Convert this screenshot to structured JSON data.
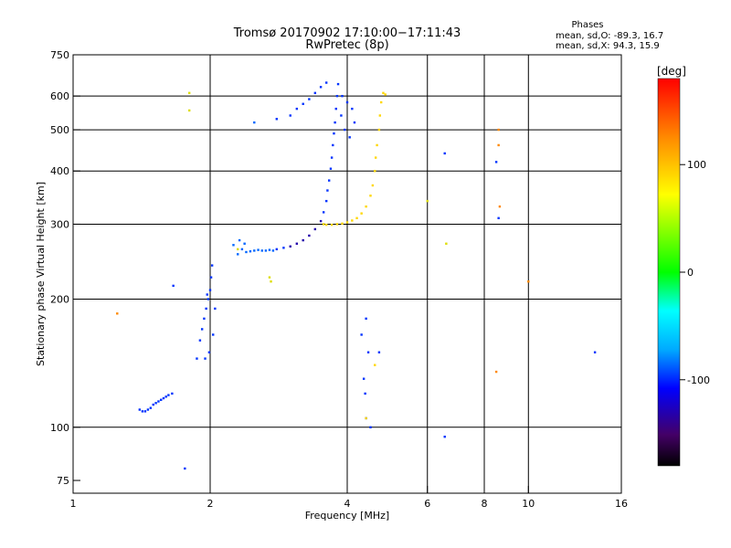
{
  "chart_data": {
    "type": "scatter",
    "title": "Tromsø 20170902 17:10:00−17:11:43",
    "subtitle": "RwPretec (8p)",
    "xlabel": "Frequency [MHz]",
    "ylabel": "Stationary phase Virtual Height [km]",
    "x_scale": "log2",
    "y_scale": "log",
    "xlim": [
      1,
      16
    ],
    "ylim": [
      70,
      750
    ],
    "x_ticks": [
      1,
      2,
      4,
      6,
      8,
      10,
      16
    ],
    "y_ticks": [
      75,
      100,
      200,
      300,
      400,
      500,
      600,
      750
    ],
    "x_grid": [
      2,
      4,
      6,
      8,
      10
    ],
    "y_grid": [
      100,
      200,
      300,
      400,
      500,
      600
    ],
    "stats": {
      "title": "Phases",
      "line1": "mean, sd,O: -89.3, 16.7",
      "line2": "mean, sd,X:  94.3, 15.9"
    },
    "colorbar": {
      "label": "[deg]",
      "range": [
        -180,
        180
      ],
      "ticks": [
        100,
        0,
        -100
      ]
    },
    "series": [
      {
        "name": "O",
        "points": [
          [
            1.4,
            110
          ],
          [
            1.42,
            109
          ],
          [
            1.44,
            109
          ],
          [
            1.46,
            110
          ],
          [
            1.48,
            111
          ],
          [
            1.5,
            113
          ],
          [
            1.52,
            114
          ],
          [
            1.54,
            115
          ],
          [
            1.56,
            116
          ],
          [
            1.58,
            117
          ],
          [
            1.6,
            118
          ],
          [
            1.62,
            119
          ],
          [
            1.65,
            120
          ],
          [
            1.76,
            80
          ],
          [
            1.66,
            215
          ],
          [
            1.87,
            145
          ],
          [
            1.9,
            160
          ],
          [
            1.92,
            170
          ],
          [
            1.94,
            180
          ],
          [
            1.96,
            190
          ],
          [
            1.98,
            200
          ],
          [
            2.0,
            210
          ],
          [
            2.01,
            225
          ],
          [
            2.02,
            240
          ],
          [
            1.99,
            150
          ],
          [
            2.03,
            165
          ],
          [
            2.05,
            190
          ],
          [
            1.95,
            145
          ],
          [
            1.97,
            205
          ],
          [
            2.3,
            255
          ],
          [
            2.35,
            262
          ],
          [
            2.4,
            258
          ],
          [
            2.45,
            259
          ],
          [
            2.5,
            260
          ],
          [
            2.55,
            261
          ],
          [
            2.6,
            260
          ],
          [
            2.65,
            260
          ],
          [
            2.7,
            261
          ],
          [
            2.75,
            260
          ],
          [
            2.32,
            275
          ],
          [
            2.38,
            270
          ],
          [
            2.25,
            268
          ],
          [
            2.8,
            262
          ],
          [
            2.9,
            264
          ],
          [
            3.0,
            266
          ],
          [
            3.1,
            270
          ],
          [
            3.2,
            275
          ],
          [
            3.3,
            282
          ],
          [
            3.4,
            292
          ],
          [
            3.5,
            305
          ],
          [
            3.55,
            320
          ],
          [
            3.6,
            340
          ],
          [
            3.62,
            360
          ],
          [
            3.65,
            380
          ],
          [
            3.68,
            405
          ],
          [
            3.7,
            430
          ],
          [
            3.72,
            460
          ],
          [
            3.74,
            490
          ],
          [
            3.76,
            520
          ],
          [
            3.78,
            560
          ],
          [
            3.8,
            600
          ],
          [
            3.82,
            640
          ],
          [
            3.9,
            600
          ],
          [
            4.0,
            580
          ],
          [
            4.1,
            560
          ],
          [
            3.95,
            500
          ],
          [
            4.05,
            480
          ],
          [
            4.15,
            520
          ],
          [
            3.88,
            540
          ],
          [
            3.0,
            540
          ],
          [
            3.1,
            560
          ],
          [
            3.2,
            575
          ],
          [
            3.3,
            590
          ],
          [
            3.4,
            610
          ],
          [
            3.5,
            630
          ],
          [
            3.6,
            645
          ],
          [
            2.8,
            530
          ],
          [
            2.5,
            520
          ],
          [
            4.4,
            180
          ],
          [
            4.45,
            150
          ],
          [
            4.3,
            165
          ],
          [
            4.35,
            130
          ],
          [
            4.38,
            120
          ],
          [
            4.4,
            105
          ],
          [
            4.5,
            100
          ],
          [
            4.7,
            150
          ],
          [
            6.55,
            95
          ],
          [
            6.55,
            440
          ],
          [
            8.5,
            420
          ],
          [
            8.6,
            310
          ],
          [
            14.0,
            150
          ]
        ]
      },
      {
        "name": "X",
        "points": [
          [
            3.55,
            300
          ],
          [
            3.6,
            299
          ],
          [
            3.7,
            299
          ],
          [
            3.8,
            300
          ],
          [
            3.9,
            301
          ],
          [
            4.0,
            303
          ],
          [
            4.1,
            306
          ],
          [
            4.2,
            310
          ],
          [
            4.3,
            318
          ],
          [
            4.4,
            330
          ],
          [
            4.5,
            350
          ],
          [
            4.55,
            370
          ],
          [
            4.6,
            400
          ],
          [
            4.62,
            430
          ],
          [
            4.65,
            460
          ],
          [
            4.7,
            500
          ],
          [
            4.72,
            540
          ],
          [
            4.75,
            580
          ],
          [
            4.8,
            610
          ],
          [
            4.85,
            605
          ],
          [
            1.25,
            185
          ],
          [
            1.8,
            610
          ],
          [
            1.8,
            555
          ],
          [
            4.4,
            105
          ],
          [
            4.6,
            140
          ],
          [
            6.0,
            340
          ],
          [
            6.6,
            270
          ],
          [
            8.6,
            500
          ],
          [
            8.6,
            460
          ],
          [
            8.65,
            330
          ],
          [
            8.5,
            135
          ],
          [
            10.0,
            220
          ],
          [
            2.7,
            225
          ],
          [
            2.72,
            220
          ],
          [
            2.3,
            262
          ]
        ]
      }
    ]
  }
}
